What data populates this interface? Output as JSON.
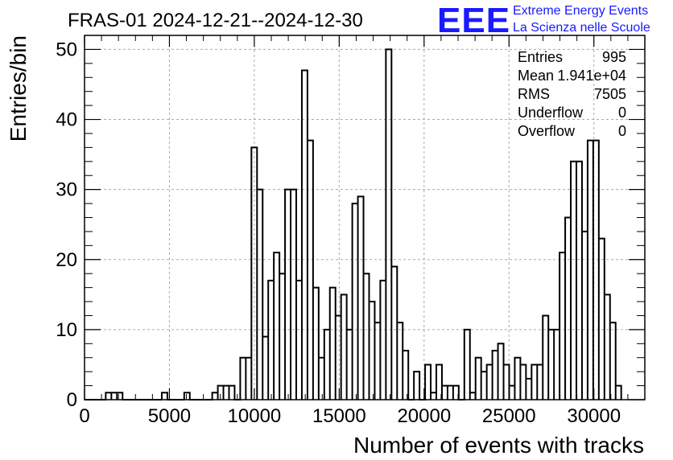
{
  "logo": {
    "text": "EEE",
    "line1": "Extreme Energy Events",
    "line2": "La Scienza nelle Scuole",
    "color": "#1a1aff"
  },
  "chart_data": {
    "type": "histogram",
    "title": "FRAS-01 2024-12-21--2024-12-30",
    "xlabel": "Number of events with tracks",
    "ylabel": "Entries/bin",
    "xlim": [
      0,
      33000
    ],
    "ylim": [
      0,
      52
    ],
    "x_ticks": [
      "0",
      "5000",
      "10000",
      "15000",
      "20000",
      "25000",
      "30000"
    ],
    "y_ticks": [
      "0",
      "10",
      "20",
      "30",
      "40",
      "50"
    ],
    "grid": true,
    "bin_width": 330,
    "bins": [
      {
        "x": 1250,
        "y": 1
      },
      {
        "x": 1580,
        "y": 1
      },
      {
        "x": 1910,
        "y": 1
      },
      {
        "x": 4550,
        "y": 1
      },
      {
        "x": 5870,
        "y": 1
      },
      {
        "x": 7520,
        "y": 1
      },
      {
        "x": 7850,
        "y": 2
      },
      {
        "x": 8180,
        "y": 2
      },
      {
        "x": 8510,
        "y": 2
      },
      {
        "x": 9170,
        "y": 6
      },
      {
        "x": 9500,
        "y": 6
      },
      {
        "x": 9830,
        "y": 36
      },
      {
        "x": 10160,
        "y": 30
      },
      {
        "x": 10490,
        "y": 9
      },
      {
        "x": 10820,
        "y": 17
      },
      {
        "x": 11150,
        "y": 21
      },
      {
        "x": 11480,
        "y": 18
      },
      {
        "x": 11810,
        "y": 30
      },
      {
        "x": 12140,
        "y": 30
      },
      {
        "x": 12470,
        "y": 17
      },
      {
        "x": 12800,
        "y": 47
      },
      {
        "x": 13130,
        "y": 37
      },
      {
        "x": 13460,
        "y": 16
      },
      {
        "x": 13790,
        "y": 6
      },
      {
        "x": 14120,
        "y": 10
      },
      {
        "x": 14450,
        "y": 16
      },
      {
        "x": 14780,
        "y": 12
      },
      {
        "x": 15110,
        "y": 15
      },
      {
        "x": 15440,
        "y": 10
      },
      {
        "x": 15770,
        "y": 28
      },
      {
        "x": 16100,
        "y": 29
      },
      {
        "x": 16430,
        "y": 18
      },
      {
        "x": 16760,
        "y": 14
      },
      {
        "x": 17090,
        "y": 11
      },
      {
        "x": 17420,
        "y": 17
      },
      {
        "x": 17750,
        "y": 50
      },
      {
        "x": 18080,
        "y": 19
      },
      {
        "x": 18410,
        "y": 11
      },
      {
        "x": 18740,
        "y": 7
      },
      {
        "x": 19400,
        "y": 4
      },
      {
        "x": 20060,
        "y": 5
      },
      {
        "x": 20390,
        "y": 1
      },
      {
        "x": 20720,
        "y": 5
      },
      {
        "x": 21050,
        "y": 2
      },
      {
        "x": 21380,
        "y": 2
      },
      {
        "x": 21710,
        "y": 2
      },
      {
        "x": 22370,
        "y": 10
      },
      {
        "x": 22700,
        "y": 1
      },
      {
        "x": 23030,
        "y": 6
      },
      {
        "x": 23360,
        "y": 4
      },
      {
        "x": 23690,
        "y": 5
      },
      {
        "x": 24020,
        "y": 7
      },
      {
        "x": 24350,
        "y": 8
      },
      {
        "x": 24680,
        "y": 5
      },
      {
        "x": 25010,
        "y": 2
      },
      {
        "x": 25340,
        "y": 6
      },
      {
        "x": 25670,
        "y": 5
      },
      {
        "x": 26000,
        "y": 3
      },
      {
        "x": 26330,
        "y": 5
      },
      {
        "x": 26660,
        "y": 5
      },
      {
        "x": 26990,
        "y": 12
      },
      {
        "x": 27320,
        "y": 10
      },
      {
        "x": 27650,
        "y": 10
      },
      {
        "x": 27980,
        "y": 21
      },
      {
        "x": 28310,
        "y": 26
      },
      {
        "x": 28640,
        "y": 34
      },
      {
        "x": 28970,
        "y": 34
      },
      {
        "x": 29300,
        "y": 24
      },
      {
        "x": 29630,
        "y": 37
      },
      {
        "x": 29960,
        "y": 37
      },
      {
        "x": 30290,
        "y": 23
      },
      {
        "x": 30620,
        "y": 15
      },
      {
        "x": 30950,
        "y": 11
      },
      {
        "x": 31280,
        "y": 2
      }
    ],
    "stats": [
      {
        "label": "Entries",
        "value": "995"
      },
      {
        "label": "Mean",
        "value": "1.941e+04"
      },
      {
        "label": "RMS",
        "value": "7505"
      },
      {
        "label": "Underflow",
        "value": "0"
      },
      {
        "label": "Overflow",
        "value": "0"
      }
    ]
  }
}
